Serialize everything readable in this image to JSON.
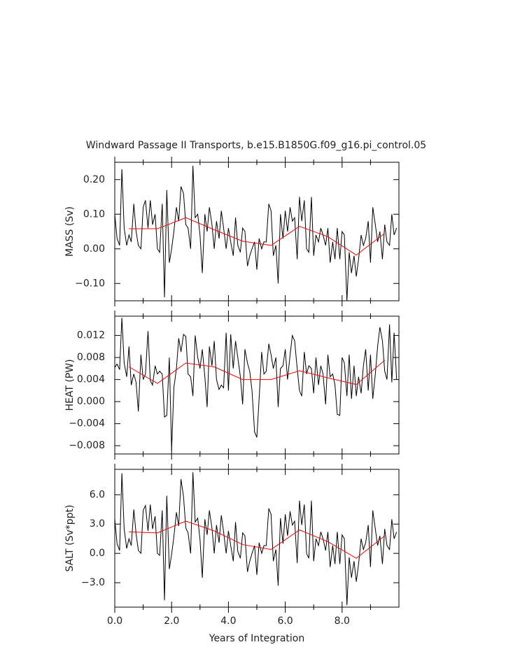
{
  "chart_data": {
    "type": "line",
    "title": "Windward Passage II Transports, b.e15.B1850G.f09_g16.pi_control.05",
    "xlabel": "Years of Integration",
    "xlim": [
      0,
      10
    ],
    "xticks": [
      {
        "value": 0,
        "label": "0.0"
      },
      {
        "value": 2,
        "label": "2.0"
      },
      {
        "value": 4,
        "label": "4.0"
      },
      {
        "value": 6,
        "label": "6.0"
      },
      {
        "value": 8,
        "label": "8.0"
      }
    ],
    "xminorticks": [
      1,
      3,
      5,
      7,
      9
    ],
    "x": [
      0,
      0.08,
      0.17,
      0.25,
      0.33,
      0.42,
      0.5,
      0.58,
      0.67,
      0.75,
      0.83,
      0.92,
      1,
      1.08,
      1.17,
      1.25,
      1.33,
      1.42,
      1.5,
      1.58,
      1.67,
      1.75,
      1.83,
      1.92,
      2,
      2.08,
      2.17,
      2.25,
      2.33,
      2.42,
      2.5,
      2.58,
      2.67,
      2.75,
      2.83,
      2.92,
      3,
      3.08,
      3.17,
      3.25,
      3.33,
      3.42,
      3.5,
      3.58,
      3.67,
      3.75,
      3.83,
      3.92,
      4,
      4.08,
      4.17,
      4.25,
      4.33,
      4.42,
      4.5,
      4.58,
      4.67,
      4.75,
      4.83,
      4.92,
      5,
      5.08,
      5.17,
      5.25,
      5.33,
      5.42,
      5.5,
      5.58,
      5.67,
      5.75,
      5.83,
      5.92,
      6,
      6.08,
      6.17,
      6.25,
      6.33,
      6.42,
      6.5,
      6.58,
      6.67,
      6.75,
      6.83,
      6.92,
      7,
      7.08,
      7.17,
      7.25,
      7.33,
      7.42,
      7.5,
      7.58,
      7.67,
      7.75,
      7.83,
      7.92,
      8,
      8.08,
      8.17,
      8.25,
      8.33,
      8.42,
      8.5,
      8.58,
      8.67,
      8.75,
      8.83,
      8.92,
      9,
      9.08,
      9.17,
      9.25,
      9.33,
      9.42,
      9.5,
      9.58,
      9.67,
      9.75,
      9.83,
      9.92
    ],
    "panels": [
      {
        "ylabel": "MASS (Sv)",
        "ylim": [
          -0.15,
          0.25
        ],
        "yticks": [
          {
            "value": 0.2,
            "label": "0.20"
          },
          {
            "value": 0.1,
            "label": "0.10"
          },
          {
            "value": 0,
            "label": "0.00"
          },
          {
            "value": -0.1,
            "label": "−0.10"
          }
        ],
        "series": [
          {
            "color": "#000000",
            "values": [
              0.1,
              0.03,
              0.01,
              0.23,
              0.06,
              0.01,
              0.04,
              0.02,
              0.13,
              0.05,
              0.01,
              0.0,
              0.12,
              0.14,
              0.06,
              0.14,
              0.07,
              0.1,
              0.0,
              -0.01,
              0.13,
              -0.14,
              0.17,
              -0.04,
              0.0,
              0.05,
              0.12,
              0.08,
              0.18,
              0.16,
              0.07,
              0.06,
              0.0,
              0.24,
              0.09,
              0.1,
              0.04,
              -0.07,
              0.1,
              0.05,
              0.12,
              0.07,
              0.0,
              0.08,
              0.03,
              0.11,
              0.06,
              0.0,
              0.06,
              0.02,
              -0.02,
              0.09,
              0.01,
              -0.01,
              0.06,
              0.05,
              -0.05,
              -0.02,
              0.0,
              0.02,
              -0.06,
              0.03,
              0.0,
              0.02,
              0.02,
              0.13,
              0.11,
              -0.02,
              0.01,
              -0.1,
              0.1,
              0.03,
              0.11,
              0.05,
              0.12,
              0.08,
              0.09,
              -0.03,
              0.15,
              0.08,
              0.14,
              0.0,
              -0.01,
              0.15,
              -0.02,
              0.04,
              0.02,
              0.06,
              0.04,
              0.01,
              0.06,
              -0.04,
              0.02,
              -0.03,
              0.06,
              -0.03,
              0.05,
              0.04,
              -0.15,
              -0.01,
              -0.07,
              -0.02,
              -0.08,
              -0.03,
              0.04,
              0.01,
              0.03,
              0.08,
              -0.04,
              0.12,
              0.07,
              0.02,
              0.05,
              -0.03,
              0.07,
              0.02,
              0.01,
              0.1,
              0.04,
              0.06
            ]
          },
          {
            "color": "#ff0000",
            "x": [
              0.5,
              1.5,
              2.5,
              3.5,
              4.5,
              5.5,
              6.5,
              7.5,
              8.5,
              9.5
            ],
            "values": [
              0.058,
              0.058,
              0.09,
              0.055,
              0.022,
              0.01,
              0.065,
              0.035,
              -0.018,
              0.045
            ]
          }
        ]
      },
      {
        "ylabel": "HEAT (PW)",
        "ylim": [
          -0.0095,
          0.0155
        ],
        "yticks": [
          0.012,
          0.008,
          0.004,
          {
            "value": 0,
            "label": "0.000"
          },
          {
            "value": -0.004,
            "label": "−0.004"
          },
          {
            "value": -0.008,
            "label": "−0.008"
          }
        ],
        "series": [
          {
            "color": "#000000",
            "values": [
              0.0062,
              0.0068,
              0.0058,
              0.0152,
              0.007,
              0.0045,
              0.01,
              0.003,
              0.005,
              0.0035,
              -0.0018,
              0.0085,
              0.004,
              0.005,
              0.0128,
              0.0038,
              0.003,
              0.0065,
              0.005,
              0.0055,
              0.005,
              -0.0028,
              -0.0025,
              0.008,
              -0.0088,
              0.0025,
              0.006,
              0.0115,
              0.009,
              0.0122,
              0.0118,
              0.005,
              0.0045,
              0.001,
              0.012,
              0.008,
              0.006,
              0.0095,
              0.0045,
              -0.001,
              0.01,
              0.0065,
              0.011,
              0.004,
              0.0022,
              0.003,
              0.0025,
              0.0125,
              0.002,
              0.0122,
              0.006,
              0.011,
              0.008,
              0.0045,
              -0.0005,
              0.0095,
              0.007,
              0.0055,
              0.002,
              -0.0055,
              -0.0065,
              0.0005,
              0.009,
              0.005,
              0.0055,
              0.0105,
              0.0085,
              0.006,
              0.008,
              -0.001,
              0.006,
              0.0065,
              0.0095,
              0.004,
              0.0085,
              0.012,
              0.011,
              0.006,
              0.002,
              0.001,
              0.009,
              0.005,
              0.0065,
              0.006,
              0.0015,
              0.008,
              0.003,
              0.0065,
              0.005,
              -0.0005,
              0.0085,
              0.0045,
              0.005,
              0.003,
              -0.0023,
              -0.0025,
              0.008,
              0.007,
              0.001,
              0.0085,
              0.0005,
              0.0065,
              0.001,
              0.0045,
              0.0015,
              0.0065,
              0.0095,
              0.002,
              0.0085,
              0.0005,
              0.005,
              0.01,
              0.0135,
              0.011,
              0.0055,
              0.004,
              0.014,
              0.0035,
              0.0125,
              0.004
            ]
          },
          {
            "color": "#ff0000",
            "x": [
              0.5,
              1.5,
              2.5,
              3.5,
              4.5,
              5.5,
              6.5,
              7.5,
              8.5,
              9.5
            ],
            "values": [
              0.0063,
              0.0033,
              0.007,
              0.0063,
              0.004,
              0.004,
              0.0056,
              0.0043,
              0.0031,
              0.0075
            ]
          }
        ]
      },
      {
        "ylabel": "SALT (Sv*ppt)",
        "ylim": [
          -5.5,
          8.6
        ],
        "yticks": [
          {
            "value": 6,
            "label": "6.0"
          },
          {
            "value": 3,
            "label": "3.0"
          },
          {
            "value": 0,
            "label": "0.0"
          },
          {
            "value": -3,
            "label": "−3.0"
          }
        ],
        "series": [
          {
            "color": "#000000",
            "values": [
              3.5,
              1.0,
              0.3,
              8.2,
              2.5,
              0.5,
              1.5,
              0.8,
              4.5,
              2.0,
              0.3,
              0.0,
              4.4,
              4.9,
              2.3,
              5.0,
              2.5,
              3.8,
              0.0,
              -0.2,
              4.4,
              -4.8,
              5.9,
              -1.6,
              -0.1,
              1.7,
              4.2,
              2.8,
              7.6,
              5.8,
              2.6,
              2.1,
              0.0,
              8.3,
              3.2,
              3.6,
              1.4,
              -2.5,
              3.5,
              1.9,
              4.4,
              2.6,
              0.0,
              2.9,
              1.1,
              3.9,
              2.2,
              0.0,
              2.3,
              0.8,
              -0.8,
              3.2,
              0.2,
              -0.5,
              2.1,
              1.8,
              -1.9,
              -0.8,
              0.0,
              0.8,
              -2.2,
              1.1,
              0.0,
              0.8,
              0.8,
              4.6,
              4.0,
              -0.8,
              0.4,
              -3.3,
              3.6,
              1.0,
              4.0,
              1.8,
              4.3,
              2.9,
              3.3,
              -1.0,
              5.4,
              2.9,
              5.0,
              0.0,
              -0.5,
              5.4,
              -0.8,
              1.5,
              0.8,
              2.2,
              1.5,
              0.3,
              2.2,
              -1.4,
              0.8,
              -1.1,
              2.2,
              -1.1,
              1.9,
              1.5,
              -5.3,
              -0.4,
              -2.5,
              -0.8,
              -2.9,
              -1.1,
              1.5,
              0.4,
              1.1,
              2.9,
              -1.4,
              4.4,
              2.5,
              0.8,
              1.8,
              -1.1,
              2.5,
              0.8,
              0.4,
              3.5,
              1.5,
              2.2
            ]
          },
          {
            "color": "#ff0000",
            "x": [
              0.5,
              1.5,
              2.5,
              3.5,
              4.5,
              5.5,
              6.5,
              7.5,
              8.5,
              9.5
            ],
            "values": [
              2.2,
              2.1,
              3.3,
              2.3,
              0.9,
              0.4,
              2.4,
              1.2,
              -0.5,
              1.8
            ]
          }
        ]
      }
    ]
  }
}
